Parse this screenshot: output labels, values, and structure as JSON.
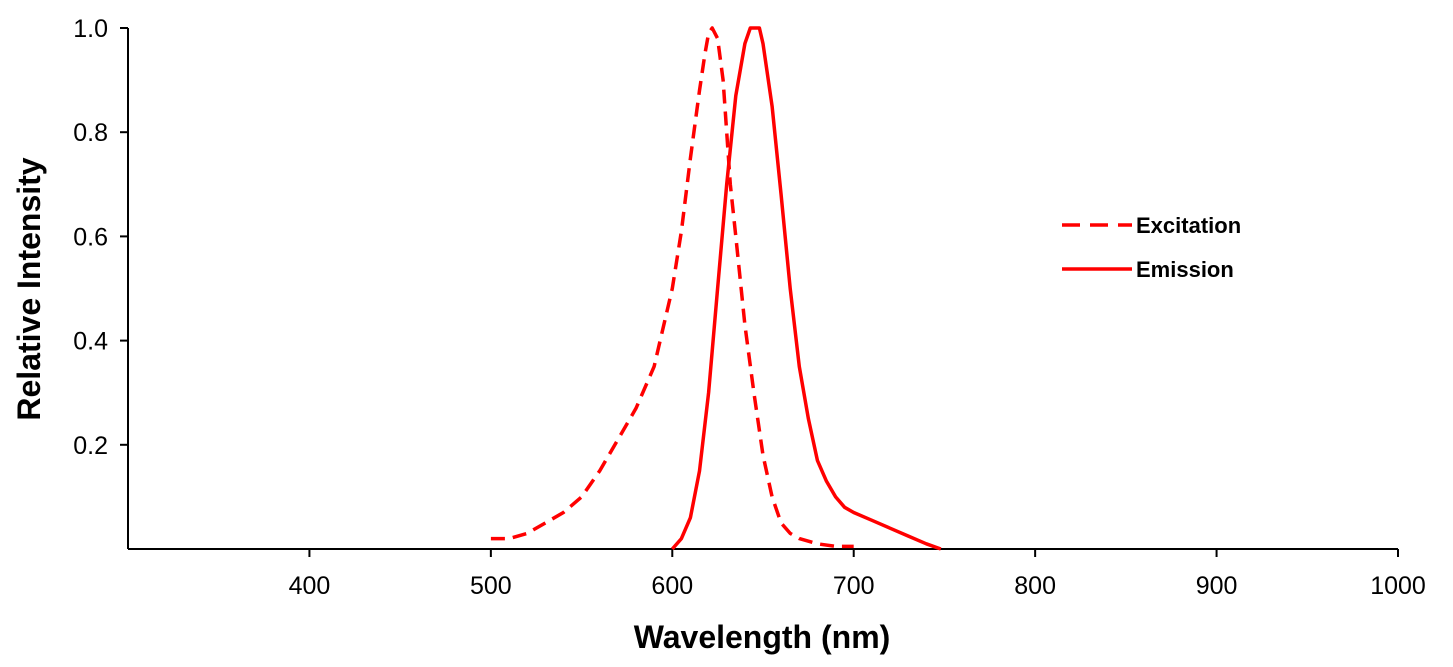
{
  "chart_data": {
    "type": "line",
    "title": "",
    "xlabel": "Wavelength (nm)",
    "ylabel": "Relative Intensity",
    "xlim": [
      300,
      1000
    ],
    "ylim": [
      0,
      1.0
    ],
    "x_ticks": [
      400,
      500,
      600,
      700,
      800,
      900,
      1000
    ],
    "y_ticks": [
      0.2,
      0.4,
      0.6,
      0.8,
      1.0
    ],
    "x_tick_labels": [
      "400",
      "500",
      "600",
      "700",
      "800",
      "900",
      "1000"
    ],
    "y_tick_labels": [
      "0.2",
      "0.4",
      "0.6",
      "0.8",
      "1.0"
    ],
    "grid": false,
    "legend_position": "right",
    "series_color": "#ff0000",
    "series": [
      {
        "name": "Excitation",
        "style": "dashed",
        "x": [
          500,
          510,
          520,
          530,
          540,
          550,
          560,
          570,
          580,
          590,
          600,
          605,
          610,
          615,
          618,
          620,
          622,
          625,
          628,
          630,
          632,
          635,
          640,
          645,
          650,
          655,
          660,
          665,
          670,
          680,
          690,
          700
        ],
        "y": [
          0.02,
          0.02,
          0.03,
          0.05,
          0.07,
          0.1,
          0.15,
          0.21,
          0.27,
          0.35,
          0.5,
          0.61,
          0.75,
          0.88,
          0.95,
          0.99,
          1.0,
          0.98,
          0.9,
          0.8,
          0.7,
          0.6,
          0.43,
          0.3,
          0.18,
          0.1,
          0.05,
          0.03,
          0.02,
          0.01,
          0.005,
          0.005
        ]
      },
      {
        "name": "Emission",
        "style": "solid",
        "x": [
          600,
          605,
          610,
          615,
          620,
          625,
          630,
          635,
          640,
          643,
          645,
          648,
          650,
          655,
          660,
          665,
          670,
          675,
          680,
          685,
          690,
          695,
          700,
          710,
          720,
          730,
          740,
          748
        ],
        "y": [
          0.0,
          0.02,
          0.06,
          0.15,
          0.3,
          0.5,
          0.7,
          0.87,
          0.97,
          1.0,
          1.0,
          1.0,
          0.97,
          0.85,
          0.68,
          0.5,
          0.35,
          0.25,
          0.17,
          0.13,
          0.1,
          0.08,
          0.07,
          0.055,
          0.04,
          0.025,
          0.01,
          0.0
        ]
      }
    ]
  }
}
